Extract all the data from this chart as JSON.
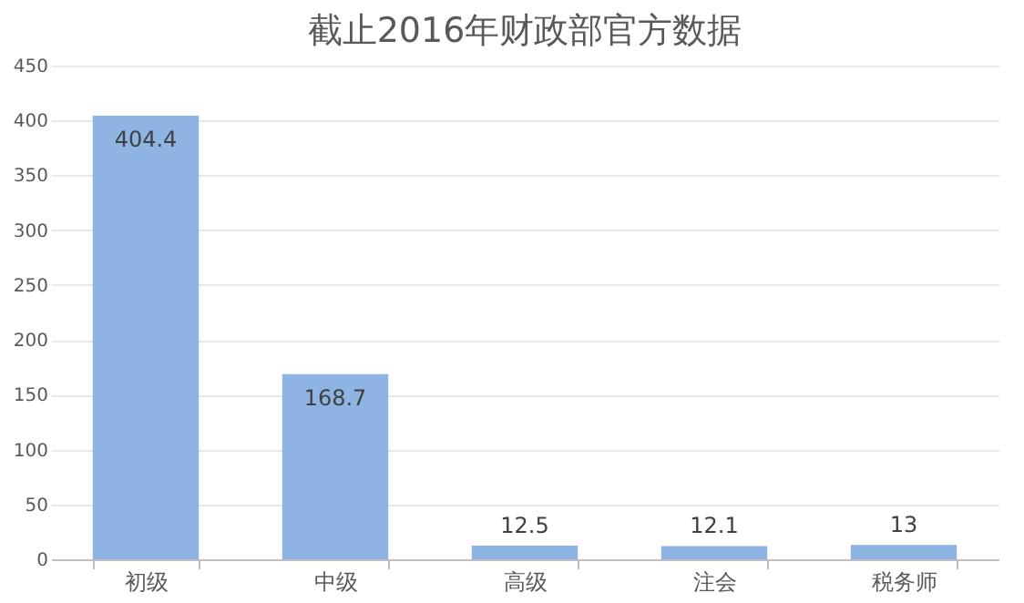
{
  "chart_data": {
    "type": "bar",
    "title": "截止2016年财政部官方数据",
    "categories": [
      "初级",
      "中级",
      "高级",
      "注会",
      "税务师"
    ],
    "values": [
      404.4,
      168.7,
      12.5,
      12.1,
      13
    ],
    "color": "#8db4e2",
    "ylim": [
      0,
      450
    ],
    "yticks": [
      0,
      50,
      100,
      150,
      200,
      250,
      300,
      350,
      400,
      450
    ],
    "grid": "y",
    "data_labels": true
  }
}
